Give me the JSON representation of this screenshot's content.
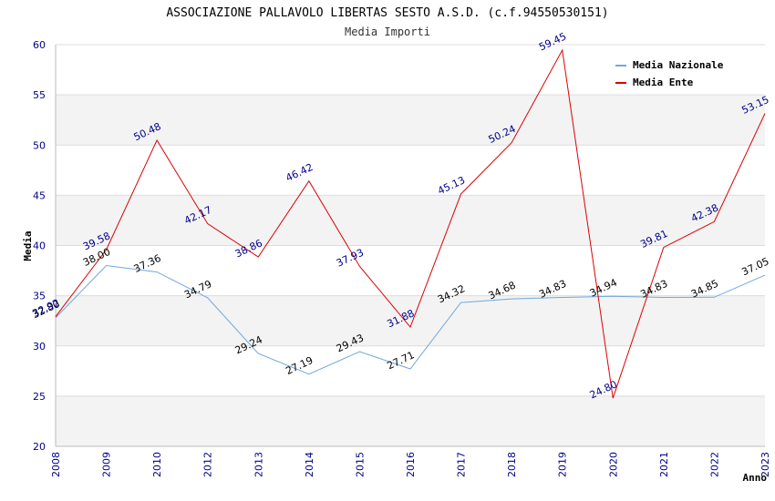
{
  "chart_data": {
    "type": "line",
    "title": "ASSOCIAZIONE PALLAVOLO LIBERTAS SESTO A.S.D. (c.f.94550530151)",
    "subtitle": "Media Importi",
    "xlabel": "Anno",
    "ylabel": "Media",
    "ylim": [
      20,
      60
    ],
    "yticks": [
      20,
      25,
      30,
      35,
      40,
      45,
      50,
      55,
      60
    ],
    "categories": [
      "2008",
      "2009",
      "2010",
      "2012",
      "2013",
      "2014",
      "2015",
      "2016",
      "2017",
      "2018",
      "2019",
      "2020",
      "2021",
      "2022",
      "2023"
    ],
    "grid": true,
    "legend_position": "top-right",
    "series": [
      {
        "name": "Media Nazionale",
        "color": "#6fa8dc",
        "label_color": "#000000",
        "values": [
          32.8,
          38.0,
          37.36,
          34.79,
          29.24,
          27.19,
          29.43,
          27.71,
          34.32,
          34.68,
          34.83,
          34.94,
          34.83,
          34.85,
          37.05
        ],
        "labels": [
          "32.80",
          "38.00",
          "37.36",
          "34.79",
          "29.24",
          "27.19",
          "29.43",
          "27.71",
          "34.32",
          "34.68",
          "34.83",
          "34.94",
          "34.83",
          "34.85",
          "37.05"
        ]
      },
      {
        "name": "Media Ente",
        "color": "#dd0000",
        "label_color": "#00008b",
        "values": [
          32.92,
          39.58,
          50.48,
          42.17,
          38.86,
          46.42,
          37.93,
          31.88,
          45.13,
          50.24,
          59.45,
          24.8,
          39.81,
          42.38,
          53.15
        ],
        "labels": [
          "32.92",
          "39.58",
          "50.48",
          "42.17",
          "38.86",
          "46.42",
          "37.93",
          "31.88",
          "45.13",
          "50.24",
          "59.45",
          "24.80",
          "39.81",
          "42.38",
          "53.15"
        ]
      }
    ]
  }
}
